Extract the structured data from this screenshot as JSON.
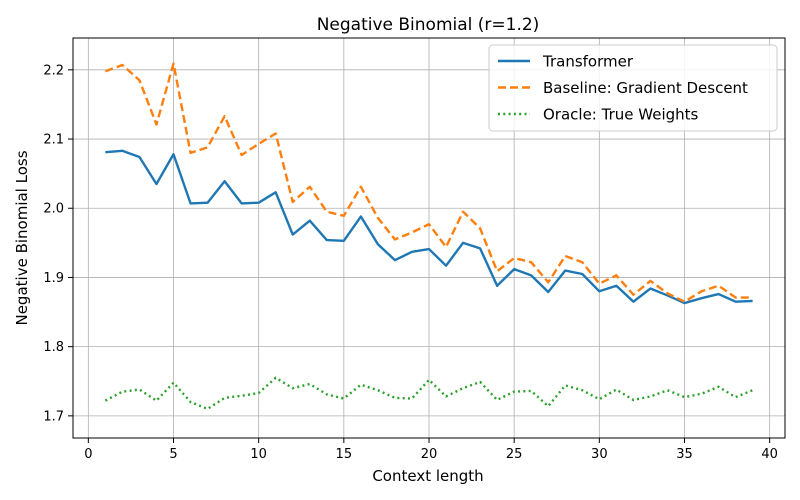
{
  "chart_data": {
    "type": "line",
    "title": "Negative Binomial (r=1.2)",
    "xlabel": "Context length",
    "ylabel": "Negative Binomial Loss",
    "xlim": [
      -0.9,
      40.9
    ],
    "ylim": [
      1.668,
      2.246
    ],
    "xticks": [
      0,
      5,
      10,
      15,
      20,
      25,
      30,
      35,
      40
    ],
    "yticks": [
      1.7,
      1.8,
      1.9,
      2.0,
      2.1,
      2.2
    ],
    "grid": true,
    "legend_position": "top-right",
    "x": [
      1,
      2,
      3,
      4,
      5,
      6,
      7,
      8,
      9,
      10,
      11,
      12,
      13,
      14,
      15,
      16,
      17,
      18,
      19,
      20,
      21,
      22,
      23,
      24,
      25,
      26,
      27,
      28,
      29,
      30,
      31,
      32,
      33,
      34,
      35,
      36,
      37,
      38,
      39
    ],
    "series": [
      {
        "name": "Transformer",
        "color": "#1f77b4",
        "style": "solid",
        "values": [
          2.081,
          2.083,
          2.074,
          2.035,
          2.078,
          2.007,
          2.008,
          2.039,
          2.007,
          2.008,
          2.023,
          1.962,
          1.982,
          1.954,
          1.953,
          1.988,
          1.948,
          1.925,
          1.937,
          1.941,
          1.917,
          1.95,
          1.942,
          1.888,
          1.912,
          1.903,
          1.879,
          1.91,
          1.905,
          1.88,
          1.888,
          1.865,
          1.884,
          1.874,
          1.863,
          1.87,
          1.876,
          1.865,
          1.866
        ]
      },
      {
        "name": "Baseline: Gradient Descent",
        "color": "#ff7f0e",
        "style": "dashed",
        "values": [
          2.198,
          2.207,
          2.185,
          2.121,
          2.209,
          2.08,
          2.088,
          2.133,
          2.077,
          2.093,
          2.108,
          2.009,
          2.031,
          1.995,
          1.989,
          2.031,
          1.986,
          1.955,
          1.965,
          1.977,
          1.944,
          1.995,
          1.971,
          1.909,
          1.928,
          1.922,
          1.893,
          1.931,
          1.922,
          1.891,
          1.903,
          1.875,
          1.895,
          1.877,
          1.865,
          1.88,
          1.888,
          1.871,
          1.871
        ]
      },
      {
        "name": "Oracle: True Weights",
        "color": "#2ca02c",
        "style": "dotted",
        "values": [
          1.722,
          1.735,
          1.738,
          1.722,
          1.748,
          1.72,
          1.71,
          1.726,
          1.729,
          1.733,
          1.755,
          1.74,
          1.746,
          1.731,
          1.725,
          1.745,
          1.737,
          1.726,
          1.725,
          1.752,
          1.728,
          1.74,
          1.749,
          1.723,
          1.735,
          1.736,
          1.714,
          1.744,
          1.737,
          1.724,
          1.738,
          1.723,
          1.728,
          1.737,
          1.727,
          1.732,
          1.742,
          1.727,
          1.737
        ]
      }
    ]
  }
}
